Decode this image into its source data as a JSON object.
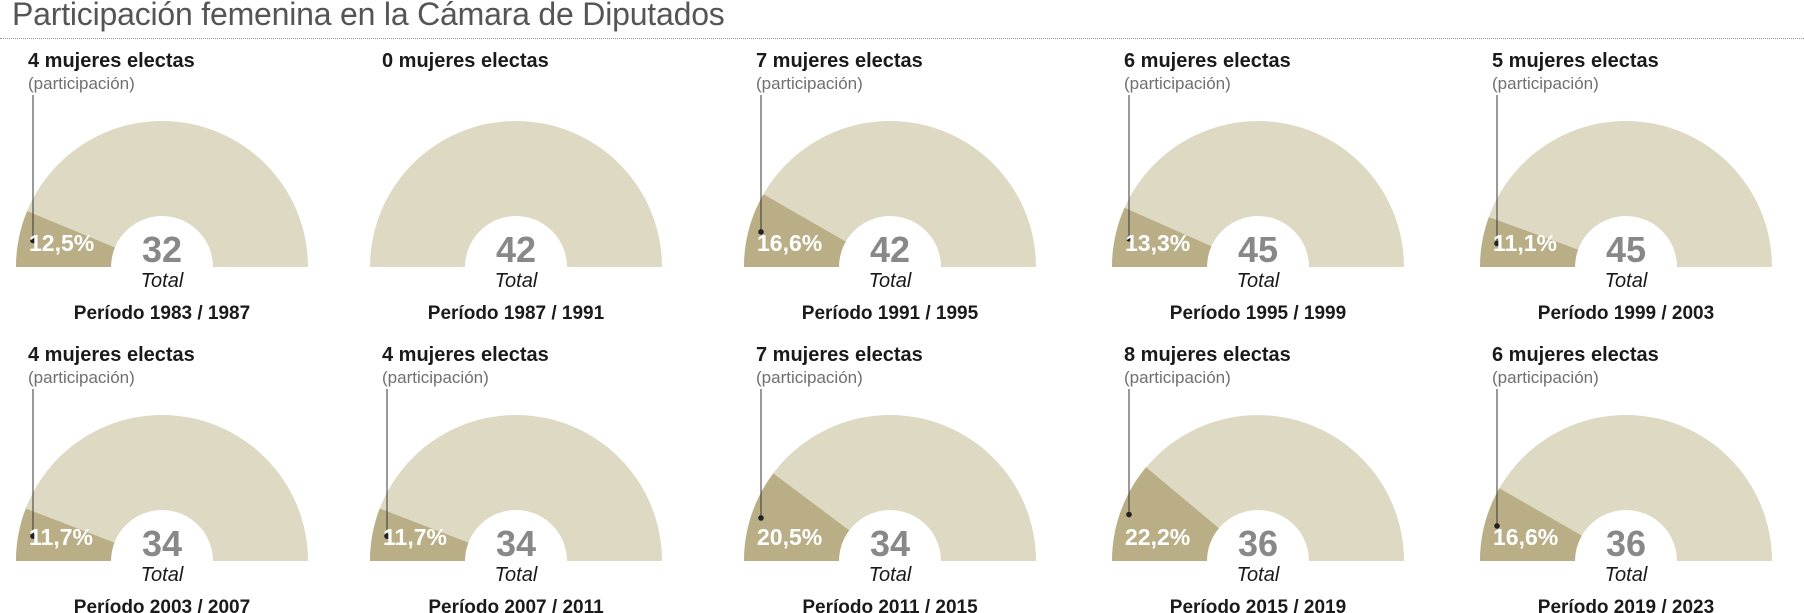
{
  "title": "Participación femenina en la Cámara de Diputados",
  "colors": {
    "background_arc": "#ddd9c2",
    "women_slice": "#b9ae86",
    "total_number": "#888888",
    "text_dark": "#1a1a1a",
    "text_muted": "#6f6f6f"
  },
  "chart_data": [
    {
      "type": "pie",
      "period": "Período 1983 / 1987",
      "women_label": "4 mujeres electas",
      "subtitle": "(participación)",
      "women": 4,
      "share": 0.125,
      "pct_label": "12,5%",
      "total": "32",
      "total_label": "Total"
    },
    {
      "type": "pie",
      "period": "Período 1987 / 1991",
      "women_label": "0 mujeres electas",
      "subtitle": "",
      "women": 0,
      "share": 0,
      "pct_label": "",
      "total": "42",
      "total_label": "Total"
    },
    {
      "type": "pie",
      "period": "Período 1991 / 1995",
      "women_label": "7 mujeres electas",
      "subtitle": "(participación)",
      "women": 7,
      "share": 0.166,
      "pct_label": "16,6%",
      "total": "42",
      "total_label": "Total"
    },
    {
      "type": "pie",
      "period": "Período 1995 / 1999",
      "women_label": "6 mujeres electas",
      "subtitle": "(participación)",
      "women": 6,
      "share": 0.133,
      "pct_label": "13,3%",
      "total": "45",
      "total_label": "Total"
    },
    {
      "type": "pie",
      "period": "Período 1999 / 2003",
      "women_label": "5 mujeres electas",
      "subtitle": "(participación)",
      "women": 5,
      "share": 0.111,
      "pct_label": "11,1%",
      "total": "45",
      "total_label": "Total"
    },
    {
      "type": "pie",
      "period": "Período 2003 / 2007",
      "women_label": "4 mujeres electas",
      "subtitle": "(participación)",
      "women": 4,
      "share": 0.117,
      "pct_label": "11,7%",
      "total": "34",
      "total_label": "Total"
    },
    {
      "type": "pie",
      "period": "Período 2007 / 2011",
      "women_label": "4 mujeres electas",
      "subtitle": "(participación)",
      "women": 4,
      "share": 0.117,
      "pct_label": "11,7%",
      "total": "34",
      "total_label": "Total"
    },
    {
      "type": "pie",
      "period": "Período 2011 / 2015",
      "women_label": "7 mujeres electas",
      "subtitle": "(participación)",
      "women": 7,
      "share": 0.205,
      "pct_label": "20,5%",
      "total": "34",
      "total_label": "Total"
    },
    {
      "type": "pie",
      "period": "Período 2015 / 2019",
      "women_label": "8 mujeres electas",
      "subtitle": "(participación)",
      "women": 8,
      "share": 0.222,
      "pct_label": "22,2%",
      "total": "36",
      "total_label": "Total"
    },
    {
      "type": "pie",
      "period": "Período 2019 / 2023",
      "women_label": "6 mujeres electas",
      "subtitle": "(participación)",
      "women": 6,
      "share": 0.166,
      "pct_label": "16,6%",
      "total": "36",
      "total_label": "Total"
    }
  ]
}
